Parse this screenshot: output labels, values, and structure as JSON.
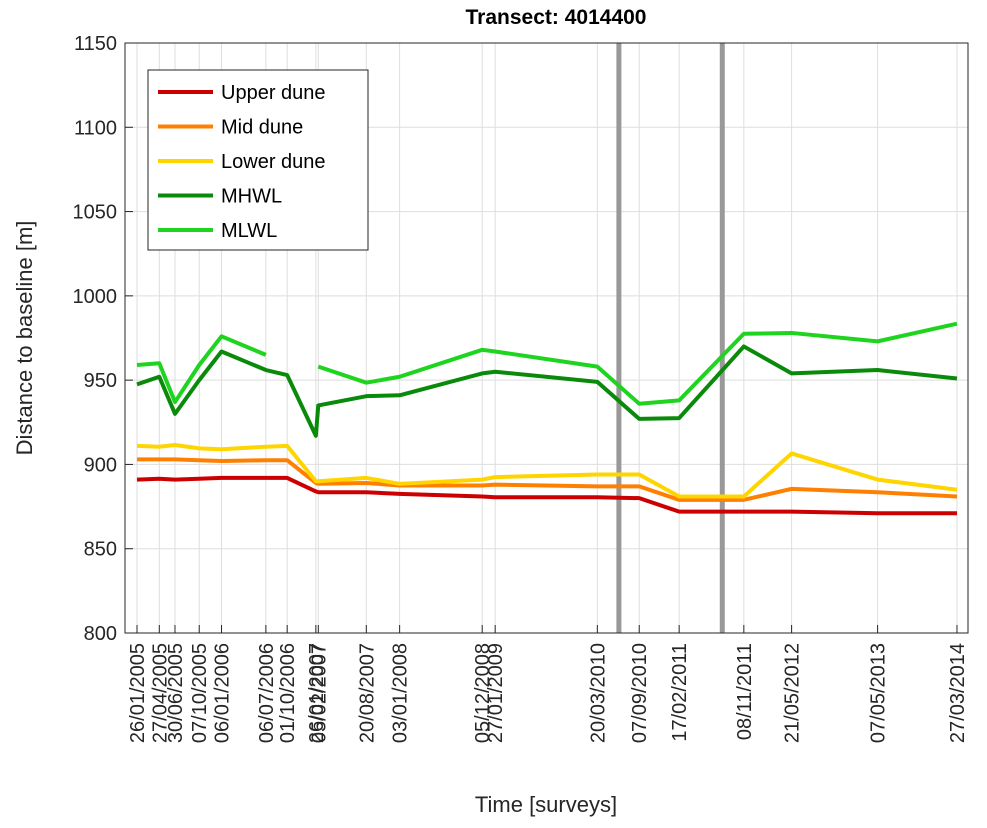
{
  "chart_data": {
    "type": "line",
    "title": "Transect: 4014400",
    "xlabel": "Time [surveys]",
    "ylabel": "Distance to baseline [m]",
    "x": [
      "26/01/2005",
      "27/04/2005",
      "30/06/2005",
      "07/10/2005",
      "06/01/2006",
      "06/07/2006",
      "01/10/2006",
      "26/01/2007",
      "05/02/2007",
      "20/08/2007",
      "03/01/2008",
      "05/12/2008",
      "27/01/2009",
      "20/03/2010",
      "07/09/2010",
      "17/02/2011",
      "08/11/2011",
      "21/05/2012",
      "07/05/2013",
      "27/03/2014"
    ],
    "xlim": [
      "08/12/2004",
      "11/05/2014"
    ],
    "ylim": [
      800,
      1150
    ],
    "yticks": [
      800,
      850,
      900,
      950,
      1000,
      1050,
      1100,
      1150
    ],
    "grid": true,
    "legend": "upper left",
    "vlines": [
      "16/06/2010",
      "12/08/2011"
    ],
    "vline_color": "#999999",
    "series": [
      {
        "name": "Upper dune",
        "color": "#cc0000",
        "values": [
          891,
          891.5,
          891,
          891.5,
          892,
          892,
          892,
          884,
          883.5,
          883.5,
          882.5,
          881,
          880.5,
          880.5,
          880,
          872,
          872,
          872,
          871,
          871
        ]
      },
      {
        "name": "Mid dune",
        "color": "#ff8000",
        "values": [
          903,
          903,
          903,
          902.5,
          902,
          902.5,
          902.5,
          889,
          888.5,
          889,
          887.5,
          887.5,
          888,
          887,
          887,
          879,
          879,
          885.5,
          883.5,
          881
        ]
      },
      {
        "name": "Lower dune",
        "color": "#ffd500",
        "values": [
          911,
          910.5,
          911.5,
          909.5,
          909,
          910.5,
          911,
          890,
          890,
          892,
          888.5,
          891,
          892.5,
          894,
          894,
          881,
          881,
          906.5,
          891,
          885
        ]
      },
      {
        "name": "MHWL",
        "color": "#0a8a0a",
        "values": [
          947.5,
          952,
          930,
          950,
          967,
          956,
          953,
          917,
          935,
          940.5,
          941,
          954,
          955,
          949,
          927,
          927.5,
          970,
          954,
          956,
          951
        ]
      },
      {
        "name": "MLWL",
        "color": "#1ed41e",
        "values": [
          959,
          960,
          937,
          959,
          976,
          965,
          null,
          null,
          958,
          948.5,
          952,
          968,
          967,
          958,
          936,
          938,
          977.5,
          978,
          973,
          983.5
        ]
      }
    ]
  }
}
